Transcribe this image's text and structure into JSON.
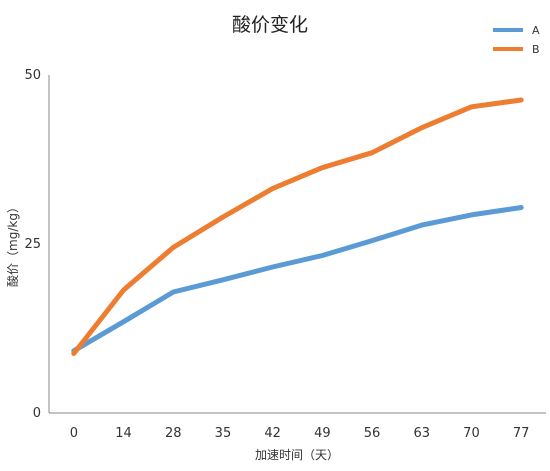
{
  "chart_data": {
    "type": "line",
    "title": "酸价变化",
    "xlabel": "加速时间（天）",
    "ylabel": "酸价（mg/kg）",
    "categories": [
      "0",
      "14",
      "28",
      "35",
      "42",
      "49",
      "56",
      "63",
      "70",
      "77"
    ],
    "x": [
      0,
      14,
      28,
      35,
      42,
      49,
      56,
      63,
      70,
      77
    ],
    "yticks": [
      "0",
      "25",
      "50"
    ],
    "ylim": [
      0,
      50
    ],
    "grid": false,
    "legend_position": "top-right",
    "series": [
      {
        "name": "A",
        "color": "#5B9BD5",
        "values": [
          9.2,
          13.5,
          17.9,
          19.7,
          21.6,
          23.3,
          25.5,
          27.8,
          29.3,
          30.4
        ]
      },
      {
        "name": "B",
        "color": "#ED7D31",
        "values": [
          8.8,
          18.2,
          24.5,
          29.0,
          33.2,
          36.3,
          38.5,
          42.2,
          45.3,
          46.3
        ]
      }
    ]
  }
}
